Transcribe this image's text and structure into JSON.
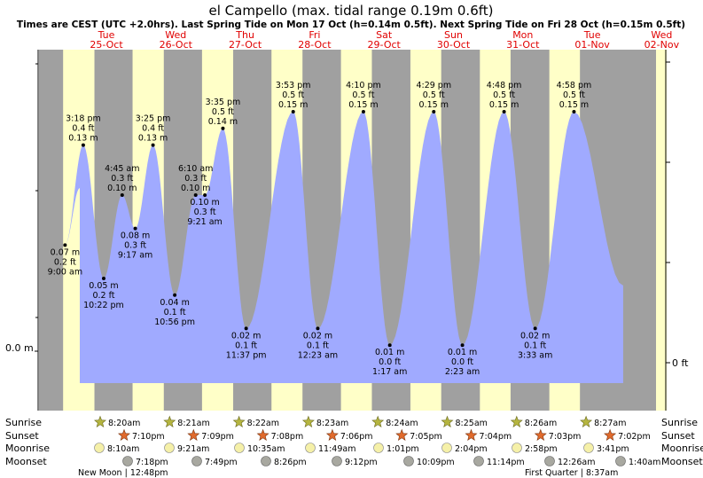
{
  "title": "el Campello (max. tidal range 0.19m 0.6ft)",
  "subtitle": "Times are CEST (UTC +2.0hrs). Last Spring Tide on Mon 17 Oct (h=0.14m 0.5ft). Next Spring Tide on Fri 28 Oct (h=0.15m 0.5ft)",
  "colors": {
    "night": "#a0a0a0",
    "day": "#ffffc8",
    "tide": "#a0aaff",
    "dayLabel": "#e00000",
    "sunIcon": "#b5b53f",
    "sunsetIcon": "#e06a2c",
    "moonrise": "#f5f0a8",
    "moonset": "#a8a8a0"
  },
  "chart_data": {
    "type": "area",
    "title": "el Campello (max. tidal range 0.19m 0.6ft)",
    "ylabel_left": "0.0 m",
    "ylabel_right": "0 ft",
    "days": [
      {
        "name": "Tue",
        "date": "25-Oct"
      },
      {
        "name": "Wed",
        "date": "26-Oct"
      },
      {
        "name": "Thu",
        "date": "27-Oct"
      },
      {
        "name": "Fri",
        "date": "28-Oct"
      },
      {
        "name": "Sat",
        "date": "29-Oct"
      },
      {
        "name": "Sun",
        "date": "30-Oct"
      },
      {
        "name": "Mon",
        "date": "31-Oct"
      },
      {
        "name": "Tue",
        "date": "01-Nov"
      },
      {
        "name": "Wed",
        "date": "02-Nov"
      }
    ],
    "tides": [
      {
        "t": "25-Oct 09:00",
        "height_m": 0.07,
        "m": "0.07 m",
        "ft": "0.2 ft",
        "time": "9:00 am",
        "type": "low"
      },
      {
        "t": "25-Oct 15:18",
        "height_m": 0.13,
        "m": "0.13 m",
        "ft": "0.4 ft",
        "time": "3:18 pm",
        "type": "high"
      },
      {
        "t": "25-Oct 22:22",
        "height_m": 0.05,
        "m": "0.05 m",
        "ft": "0.2 ft",
        "time": "10:22 pm",
        "type": "low"
      },
      {
        "t": "26-Oct 04:45",
        "height_m": 0.1,
        "m": "0.10 m",
        "ft": "0.3 ft",
        "time": "4:45 am",
        "type": "high"
      },
      {
        "t": "26-Oct 09:17",
        "height_m": 0.08,
        "m": "0.08 m",
        "ft": "0.3 ft",
        "time": "9:17 am",
        "type": "low"
      },
      {
        "t": "26-Oct 15:25",
        "height_m": 0.13,
        "m": "0.13 m",
        "ft": "0.4 ft",
        "time": "3:25 pm",
        "type": "high"
      },
      {
        "t": "26-Oct 22:56",
        "height_m": 0.04,
        "m": "0.04 m",
        "ft": "0.1 ft",
        "time": "10:56 pm",
        "type": "low"
      },
      {
        "t": "27-Oct 06:10",
        "height_m": 0.1,
        "m": "0.10 m",
        "ft": "0.3 ft",
        "time": "6:10 am",
        "type": "high"
      },
      {
        "t": "27-Oct 09:21",
        "height_m": 0.1,
        "m": "0.10 m",
        "ft": "0.3 ft",
        "time": "9:21 am",
        "type": "low"
      },
      {
        "t": "27-Oct 15:35",
        "height_m": 0.14,
        "m": "0.14 m",
        "ft": "0.5 ft",
        "time": "3:35 pm",
        "type": "high"
      },
      {
        "t": "27-Oct 23:37",
        "height_m": 0.02,
        "m": "0.02 m",
        "ft": "0.1 ft",
        "time": "11:37 pm",
        "type": "low"
      },
      {
        "t": "28-Oct 15:53",
        "height_m": 0.15,
        "m": "0.15 m",
        "ft": "0.5 ft",
        "time": "3:53 pm",
        "type": "high"
      },
      {
        "t": "29-Oct 00:23",
        "height_m": 0.02,
        "m": "0.02 m",
        "ft": "0.1 ft",
        "time": "12:23 am",
        "type": "low"
      },
      {
        "t": "29-Oct 16:10",
        "height_m": 0.15,
        "m": "0.15 m",
        "ft": "0.5 ft",
        "time": "4:10 pm",
        "type": "high"
      },
      {
        "t": "30-Oct 01:17",
        "height_m": 0.01,
        "m": "0.01 m",
        "ft": "0.0 ft",
        "time": "1:17 am",
        "type": "low"
      },
      {
        "t": "30-Oct 16:29",
        "height_m": 0.15,
        "m": "0.15 m",
        "ft": "0.5 ft",
        "time": "4:29 pm",
        "type": "high"
      },
      {
        "t": "31-Oct 02:23",
        "height_m": 0.01,
        "m": "0.01 m",
        "ft": "0.0 ft",
        "time": "2:23 am",
        "type": "low"
      },
      {
        "t": "31-Oct 16:48",
        "height_m": 0.15,
        "m": "0.15 m",
        "ft": "0.5 ft",
        "time": "4:48 pm",
        "type": "high"
      },
      {
        "t": "01-Nov 03:33",
        "height_m": 0.02,
        "m": "0.02 m",
        "ft": "0.1 ft",
        "time": "3:33 am",
        "type": "low"
      },
      {
        "t": "01-Nov 16:58",
        "height_m": 0.15,
        "m": "0.15 m",
        "ft": "0.5 ft",
        "time": "4:58 pm",
        "type": "high"
      }
    ],
    "sun": [
      {
        "sunrise": "8:20am",
        "sunset": "7:10pm"
      },
      {
        "sunrise": "8:21am",
        "sunset": "7:09pm"
      },
      {
        "sunrise": "8:22am",
        "sunset": "7:08pm"
      },
      {
        "sunrise": "8:23am",
        "sunset": "7:06pm"
      },
      {
        "sunrise": "8:24am",
        "sunset": "7:05pm"
      },
      {
        "sunrise": "8:25am",
        "sunset": "7:04pm"
      },
      {
        "sunrise": "8:26am",
        "sunset": "7:03pm"
      },
      {
        "sunrise": "8:27am",
        "sunset": "7:02pm"
      }
    ],
    "moonrise": [
      "8:10am",
      "9:21am",
      "10:35am",
      "11:49am",
      "1:01pm",
      "2:04pm",
      "2:58pm",
      "3:41pm"
    ],
    "moonset": [
      "7:18pm",
      "7:49pm",
      "8:26pm",
      "9:12pm",
      "10:09pm",
      "11:14pm",
      "12:26am",
      "1:40am"
    ],
    "row_labels": {
      "sunrise": "Sunrise",
      "sunset": "Sunset",
      "moonrise": "Moonrise",
      "moonset": "Moonset"
    },
    "moon_phases": [
      {
        "label": "New Moon | 12:48pm"
      },
      {
        "label": "First Quarter | 8:37am"
      }
    ]
  }
}
